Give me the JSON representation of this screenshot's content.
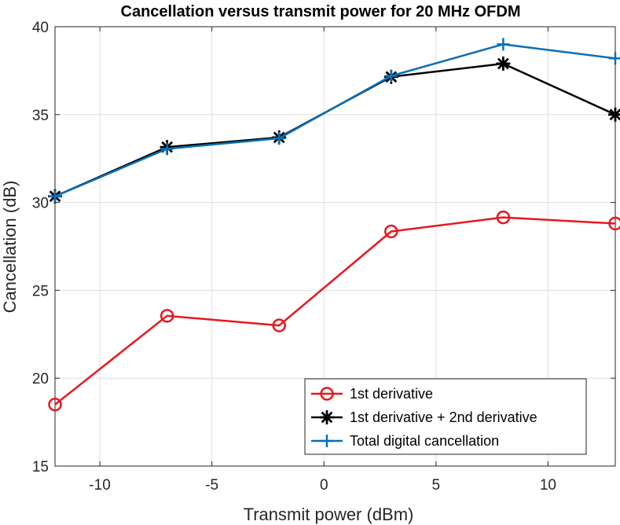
{
  "chart_data": {
    "type": "line",
    "title": "Cancellation versus transmit power for 20 MHz OFDM",
    "xlabel": "Transmit power (dBm)",
    "ylabel": "Cancellation (dB)",
    "xlim": [
      -12,
      13
    ],
    "ylim": [
      15,
      40
    ],
    "xticks": [
      -10,
      -5,
      0,
      5,
      10
    ],
    "yticks": [
      15,
      20,
      25,
      30,
      35,
      40
    ],
    "grid": true,
    "legend_position": "bottom-right",
    "x": [
      -12,
      -7,
      -2,
      3,
      8,
      13
    ],
    "series": [
      {
        "name": "1st derivative",
        "color": "#e8171d",
        "marker": "circle",
        "values": [
          18.5,
          23.55,
          23.0,
          28.35,
          29.15,
          28.8
        ]
      },
      {
        "name": "1st derivative + 2nd derivative",
        "color": "#000000",
        "marker": "asterisk",
        "values": [
          30.35,
          33.15,
          33.7,
          37.15,
          37.9,
          35.0
        ]
      },
      {
        "name": "Total digital cancellation",
        "color": "#0a6fb6",
        "marker": "plus",
        "values": [
          30.35,
          33.05,
          33.65,
          37.2,
          39.0,
          38.2
        ]
      }
    ]
  }
}
